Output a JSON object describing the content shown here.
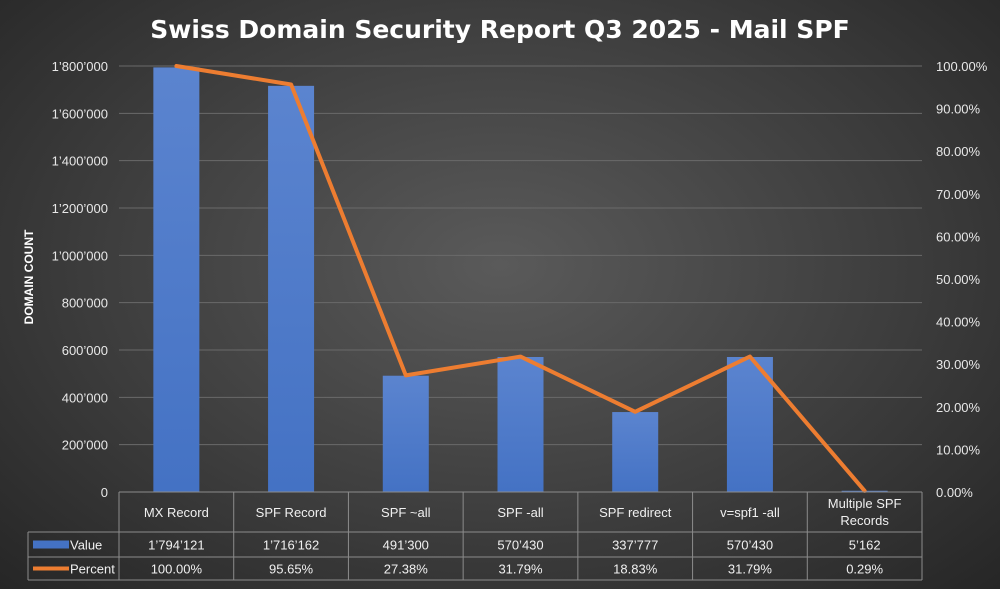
{
  "chart_data": {
    "type": "bar",
    "title": "Swiss Domain Security Report Q3 2025 - Mail SPF",
    "ylabel": "DOMAIN COUNT",
    "categories": [
      [
        "MX Record"
      ],
      [
        "SPF Record"
      ],
      [
        "SPF ~all"
      ],
      [
        "SPF -all"
      ],
      [
        "SPF redirect"
      ],
      [
        "v=spf1 -all"
      ],
      [
        "Multiple SPF",
        "Records"
      ]
    ],
    "series": [
      {
        "name": "Value",
        "type": "bar",
        "axis": "left",
        "color": "#4472c4",
        "values": [
          1794121,
          1716162,
          491300,
          570430,
          337777,
          570430,
          5162
        ],
        "labels": [
          "1’794’121",
          "1’716’162",
          "491’300",
          "570’430",
          "337’777",
          "570’430",
          "5’162"
        ]
      },
      {
        "name": "Percent",
        "type": "line",
        "axis": "right",
        "color": "#ed7d31",
        "values": [
          100.0,
          95.65,
          27.38,
          31.79,
          18.83,
          31.79,
          0.29
        ],
        "labels": [
          "100.00%",
          "95.65%",
          "27.38%",
          "31.79%",
          "18.83%",
          "31.79%",
          "0.29%"
        ]
      }
    ],
    "ylim_left": [
      0,
      1800000
    ],
    "ylim_right": [
      0,
      100
    ],
    "left_ticks": [
      "0",
      "200’000",
      "400’000",
      "600’000",
      "800’000",
      "1’000’000",
      "1’200’000",
      "1’400’000",
      "1’600’000",
      "1’800’000"
    ],
    "right_ticks": [
      "0.00%",
      "10.00%",
      "20.00%",
      "30.00%",
      "40.00%",
      "50.00%",
      "60.00%",
      "70.00%",
      "80.00%",
      "90.00%",
      "100.00%"
    ],
    "grid": true,
    "legend": "data-table"
  }
}
